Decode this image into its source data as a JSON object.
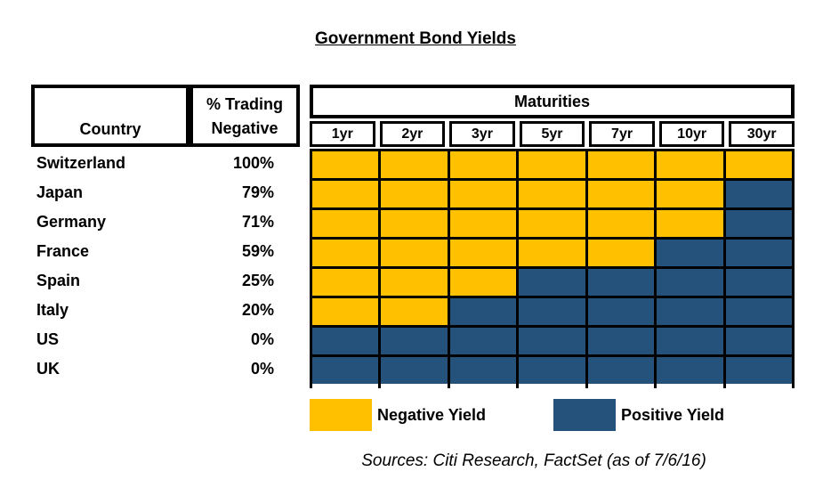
{
  "title": "Government Bond Yields",
  "header": {
    "country": "Country",
    "pct_line1": "% Trading",
    "pct_line2": "Negative",
    "maturities": "Maturities"
  },
  "colors": {
    "negative": "#FFC000",
    "positive": "#24527A",
    "border": "#000000"
  },
  "legend": {
    "negative_label": "Negative Yield",
    "positive_label": "Positive Yield"
  },
  "source_note": "Sources: Citi Research, FactSet (as of 7/6/16)",
  "chart_data": {
    "type": "heatmap",
    "title": "Government Bond Yields",
    "columns": [
      "1yr",
      "2yr",
      "3yr",
      "5yr",
      "7yr",
      "10yr",
      "30yr"
    ],
    "rows": [
      {
        "country": "Switzerland",
        "pct_trading_negative": "100%",
        "yields": [
          "negative",
          "negative",
          "negative",
          "negative",
          "negative",
          "negative",
          "negative"
        ]
      },
      {
        "country": "Japan",
        "pct_trading_negative": "79%",
        "yields": [
          "negative",
          "negative",
          "negative",
          "negative",
          "negative",
          "negative",
          "positive"
        ]
      },
      {
        "country": "Germany",
        "pct_trading_negative": "71%",
        "yields": [
          "negative",
          "negative",
          "negative",
          "negative",
          "negative",
          "negative",
          "positive"
        ]
      },
      {
        "country": "France",
        "pct_trading_negative": "59%",
        "yields": [
          "negative",
          "negative",
          "negative",
          "negative",
          "negative",
          "positive",
          "positive"
        ]
      },
      {
        "country": "Spain",
        "pct_trading_negative": "25%",
        "yields": [
          "negative",
          "negative",
          "negative",
          "positive",
          "positive",
          "positive",
          "positive"
        ]
      },
      {
        "country": "Italy",
        "pct_trading_negative": "20%",
        "yields": [
          "negative",
          "negative",
          "positive",
          "positive",
          "positive",
          "positive",
          "positive"
        ]
      },
      {
        "country": "US",
        "pct_trading_negative": "0%",
        "yields": [
          "positive",
          "positive",
          "positive",
          "positive",
          "positive",
          "positive",
          "positive"
        ]
      },
      {
        "country": "UK",
        "pct_trading_negative": "0%",
        "yields": [
          "positive",
          "positive",
          "positive",
          "positive",
          "positive",
          "positive",
          "positive"
        ]
      }
    ],
    "legend": [
      {
        "label": "Negative Yield",
        "color": "#FFC000",
        "value": "negative"
      },
      {
        "label": "Positive Yield",
        "color": "#24527A",
        "value": "positive"
      }
    ],
    "source": "Sources: Citi Research, FactSet (as of 7/6/16)"
  }
}
